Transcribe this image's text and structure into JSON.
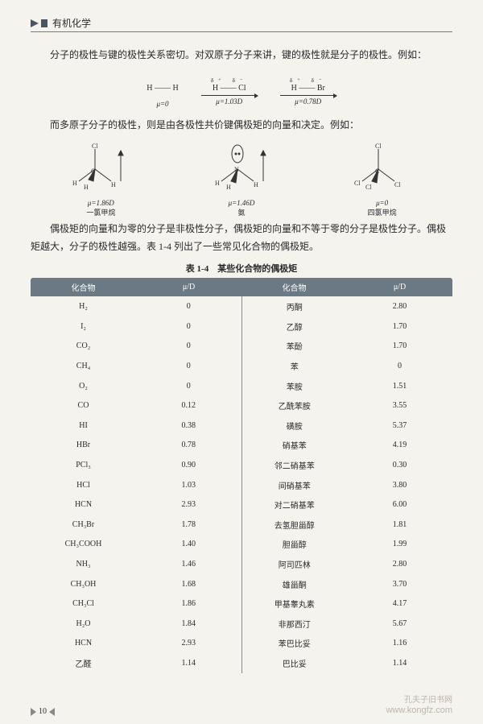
{
  "header": {
    "title": "有机化学"
  },
  "intro1": "分子的极性与键的极性关系密切。对双原子分子来讲，键的极性就是分子的极性。例如：",
  "diatomic": [
    {
      "atoms": "H —— H",
      "charges": "",
      "mu": "μ=0"
    },
    {
      "atoms": "H —— Cl",
      "charges": "δ⁺   δ⁻",
      "mu": "μ=1.03D"
    },
    {
      "atoms": "H —— Br",
      "charges": "δ⁺   δ⁻",
      "mu": "μ=0.78D"
    }
  ],
  "intro2": "而多原子分子的极性，则是由各极性共价键偶极矩的向量和决定。例如：",
  "poly": [
    {
      "mu": "μ=1.86D",
      "name": "一氯甲烷"
    },
    {
      "mu": "μ=1.46D",
      "name": "氨"
    },
    {
      "mu": "μ=0",
      "name": "四氯甲烷"
    }
  ],
  "intro3": "偶极矩的向量和为零的分子是非极性分子，偶极矩的向量和不等于零的分子是极性分子。偶极矩越大，分子的极性越强。表 1-4 列出了一些常见化合物的偶极矩。",
  "tableCaption": "表 1-4　某些化合物的偶极矩",
  "tableHeaders": [
    "化合物",
    "μ/D",
    "化合物",
    "μ/D"
  ],
  "rows": [
    [
      "H₂",
      "0",
      "丙酮",
      "2.80"
    ],
    [
      "I₂",
      "0",
      "乙醇",
      "1.70"
    ],
    [
      "CO₂",
      "0",
      "苯酚",
      "1.70"
    ],
    [
      "CH₄",
      "0",
      "苯",
      "0"
    ],
    [
      "O₂",
      "0",
      "苯胺",
      "1.51"
    ],
    [
      "CO",
      "0.12",
      "乙酰苯胺",
      "3.55"
    ],
    [
      "HI",
      "0.38",
      "磺胺",
      "5.37"
    ],
    [
      "HBr",
      "0.78",
      "硝基苯",
      "4.19"
    ],
    [
      "PCl₃",
      "0.90",
      "邻二硝基苯",
      "0.30"
    ],
    [
      "HCl",
      "1.03",
      "间硝基苯",
      "3.80"
    ],
    [
      "HCN",
      "2.93",
      "对二硝基苯",
      "6.00"
    ],
    [
      "CH₃Br",
      "1.78",
      "去氢胆甾醇",
      "1.81"
    ],
    [
      "CH₃COOH",
      "1.40",
      "胆甾醇",
      "1.99"
    ],
    [
      "NH₃",
      "1.46",
      "阿司匹林",
      "2.80"
    ],
    [
      "CH₃OH",
      "1.68",
      "雄甾酮",
      "3.70"
    ],
    [
      "CH₃Cl",
      "1.86",
      "甲基睾丸素",
      "4.17"
    ],
    [
      "H₂O",
      "1.84",
      "非那西汀",
      "5.67"
    ],
    [
      "HCN",
      "2.93",
      "苯巴比妥",
      "1.16"
    ],
    [
      "乙醛",
      "1.14",
      "巴比妥",
      "1.14"
    ]
  ],
  "pageNumber": "10",
  "watermark": {
    "cn": "孔夫子旧书网",
    "url": "www.kongfz.com"
  },
  "colors": {
    "bg": "#f5f3ee",
    "headerBlock": "#4a5560",
    "thBg": "#6a7983",
    "thText": "#ffffff",
    "wm": "#bdb7aa",
    "rule": "#7a7a7a"
  }
}
